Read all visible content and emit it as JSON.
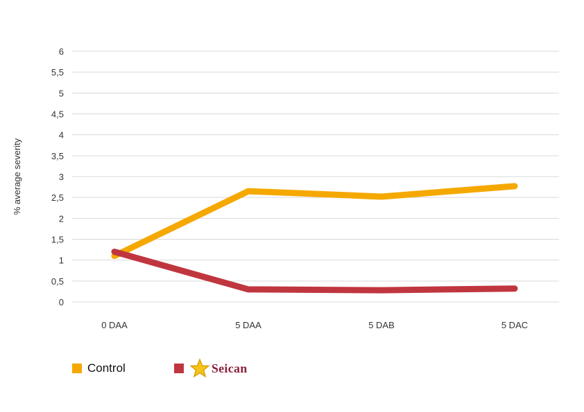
{
  "chart_data": {
    "type": "line",
    "ylabel": "% average severity",
    "xlabel": "",
    "categories": [
      "0 DAA",
      "5 DAA",
      "5 DAB",
      "5 DAC"
    ],
    "ylim": [
      0,
      6
    ],
    "yticks": [
      "0",
      "0,5",
      "1",
      "1,5",
      "2",
      "2,5",
      "3",
      "3,5",
      "4",
      "4,5",
      "5",
      "5,5",
      "6"
    ],
    "grid": true,
    "legend_position": "bottom-left",
    "series": [
      {
        "name": "Control",
        "values": [
          1.1,
          2.65,
          2.52,
          2.77
        ],
        "color": "#f5a800"
      },
      {
        "name": "Seican",
        "values": [
          1.2,
          0.3,
          0.28,
          0.32
        ],
        "color": "#c0363f"
      }
    ]
  },
  "legend": {
    "control_label": "Control",
    "seican_brand": "Seican",
    "seican_brand_color": "#8c1f3a",
    "seican_icon": "star-icon"
  }
}
